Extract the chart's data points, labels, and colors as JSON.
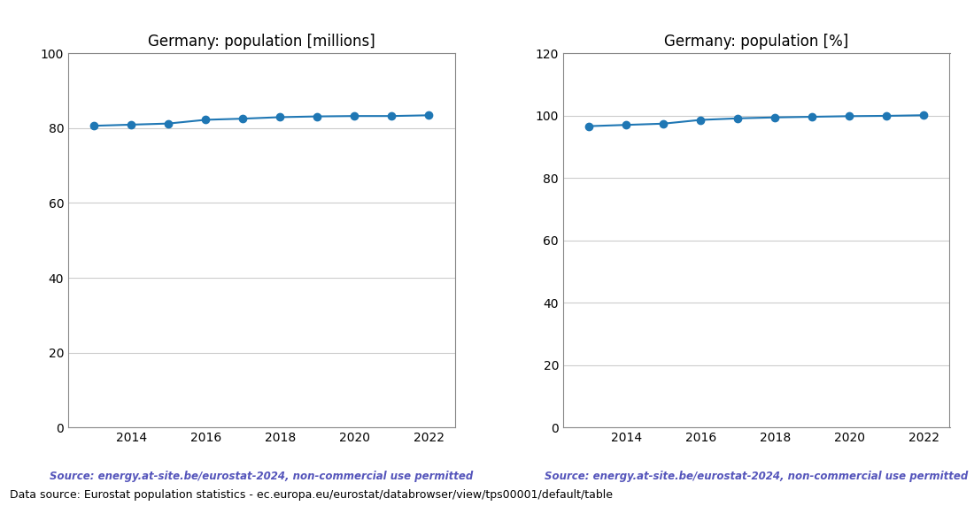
{
  "years": [
    2013,
    2014,
    2015,
    2016,
    2017,
    2018,
    2019,
    2020,
    2021,
    2022
  ],
  "population_millions": [
    80.6,
    80.9,
    81.2,
    82.2,
    82.5,
    82.9,
    83.1,
    83.2,
    83.2,
    83.4
  ],
  "population_percent": [
    96.6,
    97.0,
    97.4,
    98.6,
    99.1,
    99.4,
    99.6,
    99.8,
    99.9,
    100.1
  ],
  "title_millions": "Germany: population [millions]",
  "title_percent": "Germany: population [%]",
  "source_text": "Source: energy.at-site.be/eurostat-2024, non-commercial use permitted",
  "footer_text": "Data source: Eurostat population statistics - ec.europa.eu/eurostat/databrowser/view/tps00001/default/table",
  "line_color": "#1f77b4",
  "source_color": "#5555bb",
  "ylim_millions": [
    0,
    100
  ],
  "ylim_percent": [
    0,
    120
  ],
  "yticks_millions": [
    0,
    20,
    40,
    60,
    80,
    100
  ],
  "yticks_percent": [
    0,
    20,
    40,
    60,
    80,
    100,
    120
  ],
  "grid_color": "#cccccc",
  "bg_color": "#ffffff",
  "xlim": [
    2012.3,
    2022.7
  ],
  "xticks": [
    2014,
    2016,
    2018,
    2020,
    2022
  ]
}
